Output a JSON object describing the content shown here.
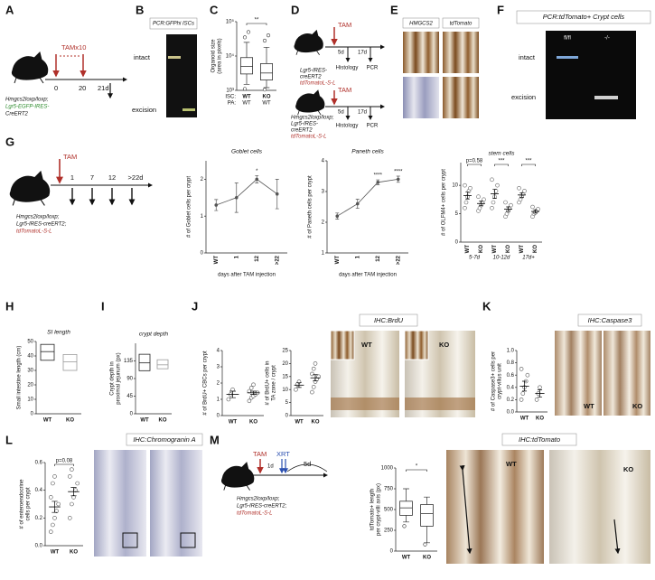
{
  "panel_letters": [
    "A",
    "B",
    "C",
    "D",
    "E",
    "F",
    "G",
    "H",
    "I",
    "J",
    "K",
    "L",
    "M"
  ],
  "panels": {
    "A": {
      "treatment": "TAMx10",
      "timepoints": [
        "0",
        "20",
        "21d"
      ],
      "genotype": [
        "Hmgcs2loxp/loxp;",
        "Lgr5-EGFP-IRES-",
        "CreERT2"
      ]
    },
    "B": {
      "title": "PCR:GFPhi ISCs",
      "bands": [
        "intact",
        "excision"
      ]
    },
    "D": {
      "treatment": "TAM",
      "timepoints": [
        "5d",
        "17d"
      ],
      "readouts": [
        "Histology",
        "PCR"
      ],
      "genotype1": [
        "Lgr5-IRES-",
        "creERT2",
        "tdTomatoL-S-L"
      ],
      "genotype2": [
        "Hmgcs2loxp/loxp;",
        "Lgr5-IRES-",
        "creERT2",
        "tdTomatoL-S-L"
      ]
    },
    "E": {
      "stains": [
        "HMGCS2",
        "tdTomato"
      ]
    },
    "F": {
      "title": "PCR:tdTomato+ Crypt cells",
      "lanes": [
        "fl/fl",
        "-/-"
      ],
      "bands": [
        "intact",
        "excision"
      ]
    },
    "G": {
      "treatment": "TAM",
      "timepoints": [
        "1",
        "7",
        "12",
        ">22d"
      ],
      "genotype": [
        "Hmgcs2loxp/loxp;",
        "Lgr5-IRES-creERT2;",
        "tdTomatoL-S-L"
      ]
    },
    "J": {
      "stain": "IHC:BrdU",
      "genotypes": [
        "WT",
        "KO"
      ]
    },
    "K": {
      "stain": "IHC:Caspase3",
      "genotypes": [
        "WT",
        "KO"
      ]
    },
    "L": {
      "stain": "IHC:Chromogranin A"
    },
    "M": {
      "treatment": "TAM",
      "interval": "1d",
      "irradiation": "XRT",
      "timepoint": "5d",
      "genotype": [
        "Hmgcs2loxp/loxp;",
        "Lgr5-IRES-creERT2;",
        "tdTomatoL-S-L"
      ],
      "stain": "IHC:tdTomato",
      "genotypes": [
        "WT",
        "KO"
      ]
    }
  },
  "chart_data": [
    {
      "type": "box",
      "y_label": [
        "Organoid size",
        "(area in pixels)"
      ],
      "log": true,
      "categories": [
        "WT",
        "KO"
      ],
      "categories2": [
        "WT",
        "WT"
      ],
      "row_labels": [
        "ISC:",
        "PA:"
      ],
      "ylim": [
        1000,
        100000
      ],
      "yticks": [
        {
          "value": 1000,
          "label": "10³"
        },
        {
          "value": 10000,
          "label": "10⁴"
        },
        {
          "value": 100000,
          "label": "10⁵"
        }
      ],
      "min": [
        1500,
        1200
      ],
      "q1": [
        3000,
        2000
      ],
      "median": [
        5000,
        3200
      ],
      "q3": [
        9000,
        6000
      ],
      "max": [
        25000,
        18000
      ],
      "outliers": [
        [
          35000,
          50000,
          1100
        ],
        [
          28000,
          40000,
          1050
        ]
      ],
      "colors": [
        "#333",
        "#333"
      ],
      "brackets": [
        {
          "from": 0,
          "to": 1,
          "text": "**"
        }
      ]
    },
    {
      "type": "line",
      "title": "Goblet cells",
      "y_label": [
        "# of Goblet cells per crypt"
      ],
      "x_label": "days after TAM injection",
      "categories": [
        "WT",
        "1",
        "12",
        ">22"
      ],
      "values": [
        1.3,
        1.5,
        2.0,
        1.6
      ],
      "errors": [
        0.15,
        0.4,
        0.1,
        0.4
      ],
      "color": "#555",
      "ylim": [
        0,
        2.5
      ],
      "yticks": [
        0,
        1,
        2
      ],
      "stars": [
        {
          "at": 2,
          "text": "*"
        }
      ]
    },
    {
      "type": "line",
      "title": "Paneth cells",
      "y_label": [
        "# of Paneth cells per crypt"
      ],
      "x_label": "days after TAM injection",
      "categories": [
        "WT",
        "1",
        "12",
        ">22"
      ],
      "values": [
        2.2,
        2.6,
        3.3,
        3.4
      ],
      "errors": [
        0.1,
        0.15,
        0.08,
        0.1
      ],
      "color": "#555",
      "ylim": [
        1,
        4
      ],
      "yticks": [
        1,
        2,
        3,
        4
      ],
      "stars": [
        {
          "at": 2,
          "text": "****"
        },
        {
          "at": 3,
          "text": "****"
        }
      ]
    },
    {
      "type": "dot",
      "title": "stem cells",
      "y_label": [
        "# of OLFM4+ cells per crypt"
      ],
      "categories": [
        "WT",
        "KO",
        "WT",
        "KO",
        "WT",
        "KO"
      ],
      "groups": [
        "5-7d",
        "10-12d",
        "17d+"
      ],
      "points": [
        [
          6,
          7,
          8,
          9,
          9.5,
          10
        ],
        [
          5.5,
          6,
          6.5,
          7,
          7.5,
          8
        ],
        [
          6,
          7,
          8,
          9,
          10,
          11
        ],
        [
          4.5,
          5,
          5.5,
          6,
          6.5,
          7
        ],
        [
          7,
          7.5,
          8,
          8.5,
          9,
          9.5
        ],
        [
          4.5,
          5,
          5.2,
          5.5,
          5.8,
          6.2
        ]
      ],
      "means": [
        8.2,
        6.8,
        8.5,
        5.8,
        8.3,
        5.4
      ],
      "errors": [
        0.6,
        0.4,
        0.8,
        0.4,
        0.4,
        0.3
      ],
      "color": "#666",
      "ylim": [
        0,
        14
      ],
      "yticks": [
        0,
        5,
        10
      ],
      "brackets": [
        {
          "from": 0,
          "to": 1,
          "text": "p=0.58"
        },
        {
          "from": 2,
          "to": 3,
          "text": "***"
        },
        {
          "from": 4,
          "to": 5,
          "text": "***"
        }
      ]
    },
    {
      "type": "box",
      "title": "SI length",
      "y_label": [
        "Small intestine length (cm)"
      ],
      "categories": [
        "WT",
        "KO"
      ],
      "q1": [
        37,
        30
      ],
      "median": [
        43,
        36
      ],
      "q3": [
        48,
        41
      ],
      "colors": [
        "#222",
        "#999"
      ],
      "ylim": [
        0,
        50
      ],
      "yticks": [
        0,
        10,
        20,
        30,
        40,
        50
      ]
    },
    {
      "type": "box",
      "title": "crypt depth",
      "y_label": [
        "Crypt depth in",
        "proximal jejunum (px)"
      ],
      "categories": [
        "WT",
        "KO"
      ],
      "q1": [
        110,
        115
      ],
      "median": [
        130,
        125
      ],
      "q3": [
        152,
        138
      ],
      "colors": [
        "#222",
        "#999"
      ],
      "ylim": [
        0,
        180
      ],
      "yticks": [
        0,
        45,
        90,
        135
      ]
    },
    {
      "type": "dot",
      "y_label": [
        "# of BrdU+ CBCs per crypt"
      ],
      "categories": [
        "WT",
        "KO"
      ],
      "points": [
        [
          1.0,
          1.3,
          1.6
        ],
        [
          0.9,
          1.1,
          1.2,
          1.3,
          1.4,
          1.5,
          1.7,
          1.9
        ]
      ],
      "means": [
        1.3,
        1.4
      ],
      "errors": [
        0.2,
        0.1
      ],
      "color": "#555",
      "ylim": [
        0,
        4
      ],
      "yticks": [
        0,
        1,
        2,
        3,
        4
      ]
    },
    {
      "type": "dot",
      "y_label": [
        "# of BrdU+ cells in",
        "TA zone / crypt"
      ],
      "categories": [
        "WT",
        "KO"
      ],
      "points": [
        [
          10,
          12,
          13
        ],
        [
          9,
          11,
          13,
          14,
          15,
          16,
          18,
          20
        ]
      ],
      "means": [
        11.7,
        14.5
      ],
      "errors": [
        0.9,
        1.2
      ],
      "color": "#555",
      "ylim": [
        0,
        25
      ],
      "yticks": [
        0,
        5,
        10,
        15,
        20,
        25
      ]
    },
    {
      "type": "dot",
      "y_label": [
        "# of Caspase3+ cells per",
        "crypt-villus unit"
      ],
      "categories": [
        "WT",
        "KO"
      ],
      "points": [
        [
          0.2,
          0.3,
          0.4,
          0.5,
          0.6,
          0.7
        ],
        [
          0.2,
          0.3,
          0.4
        ]
      ],
      "means": [
        0.42,
        0.3
      ],
      "errors": [
        0.08,
        0.06
      ],
      "color": "#555",
      "ylim": [
        0,
        1
      ],
      "yticks": [
        {
          "value": 0,
          "label": "0.0"
        },
        {
          "value": 0.2,
          "label": "0.2"
        },
        {
          "value": 0.4,
          "label": "0.4"
        },
        {
          "value": 0.6,
          "label": "0.6"
        },
        {
          "value": 0.8,
          "label": "0.8"
        },
        {
          "value": 1,
          "label": "1.0"
        }
      ]
    },
    {
      "type": "dot",
      "y_label": [
        "# of enteroendocrine",
        "cells per crypt"
      ],
      "categories": [
        "WT",
        "KO"
      ],
      "points": [
        [
          0.1,
          0.15,
          0.2,
          0.25,
          0.3,
          0.35,
          0.45,
          0.5
        ],
        [
          0.2,
          0.3,
          0.35,
          0.4,
          0.45,
          0.5,
          0.55
        ]
      ],
      "means": [
        0.28,
        0.39
      ],
      "errors": [
        0.04,
        0.03
      ],
      "color": "#555",
      "ylim": [
        0,
        0.6
      ],
      "yticks": [
        {
          "value": 0,
          "label": "0.0"
        },
        {
          "value": 0.2,
          "label": "0.2"
        },
        {
          "value": 0.4,
          "label": "0.4"
        },
        {
          "value": 0.6,
          "label": "0.6"
        }
      ],
      "brackets": [
        {
          "from": 0,
          "to": 1,
          "text": "p=0.08"
        }
      ]
    },
    {
      "type": "box",
      "y_label": [
        "tdTomato+ length",
        "per crypt-villi axis (px)"
      ],
      "categories": [
        "WT",
        "KO"
      ],
      "min": [
        350,
        100
      ],
      "q1": [
        430,
        300
      ],
      "median": [
        520,
        450
      ],
      "q3": [
        600,
        560
      ],
      "max": [
        750,
        650
      ],
      "outliers": [
        [
          300
        ],
        [
          80
        ]
      ],
      "colors": [
        "#333",
        "#333"
      ],
      "ylim": [
        0,
        1000
      ],
      "yticks": [
        0,
        250,
        500,
        750,
        1000
      ],
      "brackets": [
        {
          "from": 0,
          "to": 1,
          "text": "*"
        }
      ]
    }
  ]
}
